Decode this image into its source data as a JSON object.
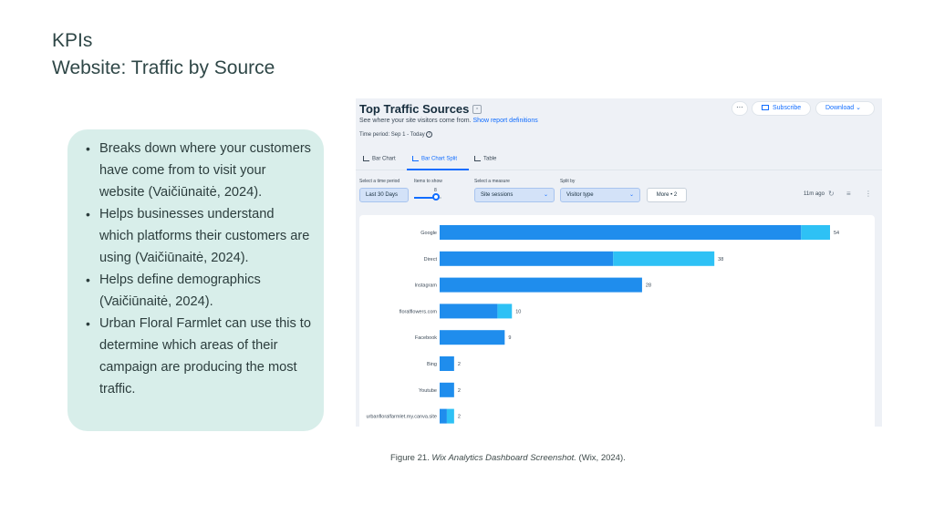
{
  "slide": {
    "title_line1": "KPIs",
    "title_line2": "Website: Traffic by Source",
    "bullets": [
      "Breaks down where your customers have come from to visit your website (Vaičiūnaitė, 2024).",
      "Helps businesses understand which platforms their customers are using (Vaičiūnaitė, 2024).",
      "Helps define demographics (Vaičiūnaitė, 2024).",
      "Urban Floral Farmlet can use this to determine which areas of their campaign are producing the most traffic."
    ],
    "caption_prefix": "Figure 21. ",
    "caption_italic": "Wix Analytics Dashboard Screenshot.",
    "caption_suffix": " (Wix, 2024)."
  },
  "dashboard": {
    "title": "Top Traffic Sources",
    "subtitle": "See where your site visitors come from.",
    "report_link": "Show report definitions",
    "time_period": "Time period: Sep 1 - Today",
    "more_label": "···",
    "subscribe_label": "Subscribe",
    "download_label": "Download",
    "tabs": [
      {
        "label": "Bar Chart",
        "active": false
      },
      {
        "label": "Bar Chart Split",
        "active": true
      },
      {
        "label": "Table",
        "active": false
      }
    ],
    "controls": {
      "time_label": "Select a time period",
      "time_value": "Last 30 Days",
      "items_label": "Items to show",
      "items_value": "8",
      "measure_label": "Select a measure",
      "measure_value": "Site sessions",
      "split_label": "Split by",
      "split_value": "Visitor type",
      "more_value": "More • 2",
      "updated": "11m ago"
    },
    "colors": {
      "accent": "#116dff",
      "bar_primary": "#1f8ded",
      "bar_secondary": "#2ec1f5"
    }
  },
  "chart_data": {
    "type": "bar",
    "orientation": "horizontal",
    "stacked": true,
    "categories": [
      "Google",
      "Direct",
      "Instagram",
      "floralflowers.com",
      "Facebook",
      "Bing",
      "Youtube",
      "urbanfloralfarmlet.my.canva.site"
    ],
    "series": [
      {
        "values": [
          50,
          24,
          28,
          8,
          9,
          2,
          2,
          1
        ]
      },
      {
        "values": [
          4,
          14,
          0,
          2,
          0,
          0,
          0,
          1
        ]
      }
    ],
    "totals": [
      "54",
      "38",
      "28",
      "10",
      "9",
      "2",
      "2",
      "2"
    ],
    "xlim": [
      0,
      54
    ]
  }
}
